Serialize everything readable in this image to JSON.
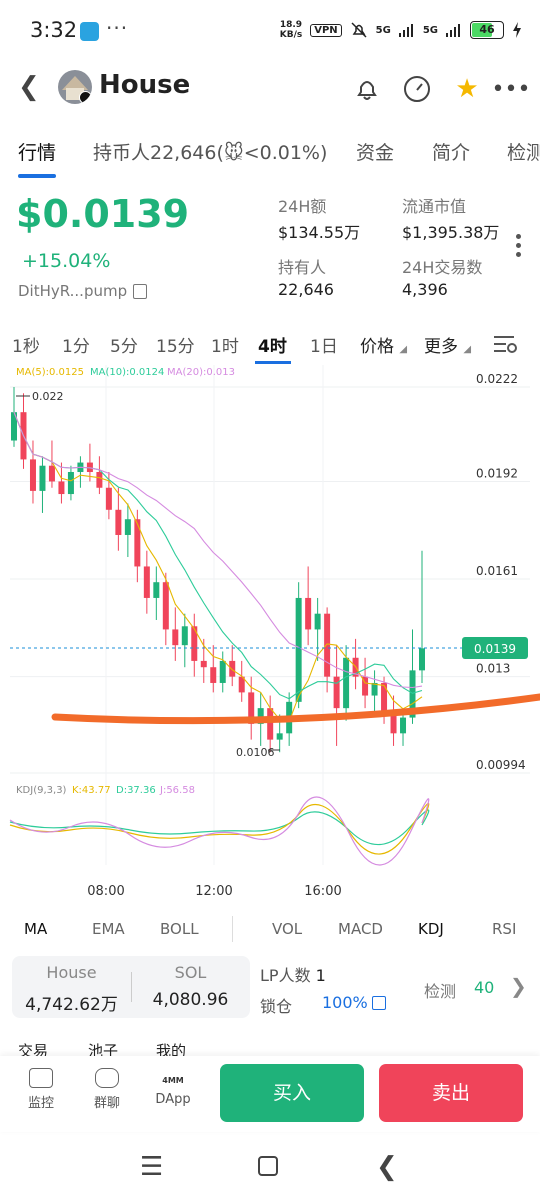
{
  "status": {
    "time": "3:32",
    "dots": "···",
    "net_speed_top": "18.9",
    "net_speed_bottom": "KB/s",
    "vpn": "VPN",
    "sig1": "5G",
    "sig2": "5G",
    "battery": "46"
  },
  "header": {
    "title": "House"
  },
  "tabs": [
    "行情",
    "持币人22,646(🐭<0.01%)",
    "资金",
    "简介",
    "检测"
  ],
  "price": {
    "value": "$0.0139",
    "change": "+15.04%",
    "address": "DitHyR...pump"
  },
  "stats": [
    {
      "label": "24H额",
      "value": "$134.55万"
    },
    {
      "label": "流通市值",
      "value": "$1,395.38万"
    },
    {
      "label": "持有人",
      "value": "22,646"
    },
    {
      "label": "24H交易数",
      "value": "4,396"
    }
  ],
  "timeframes": [
    "1秒",
    "1分",
    "5分",
    "15分",
    "1时",
    "4时",
    "1日"
  ],
  "tf_dropdowns": [
    "价格",
    "更多"
  ],
  "chart": {
    "ma_labels": {
      "ma5": "MA(5):0.0125",
      "ma10": "MA(10):0.0124",
      "ma20": "MA(20):0.013"
    },
    "y_ticks": [
      "0.0222",
      "0.0192",
      "0.0161",
      "0.013",
      "0.00994"
    ],
    "current_price": "0.0139",
    "high_label": "0.022",
    "low_label": "0.0106",
    "kdj_labels": {
      "name": "KDJ(9,3,3)",
      "k": "K:43.77",
      "d": "D:37.36",
      "j": "J:56.58"
    },
    "x_ticks": [
      "08:00",
      "12:00",
      "16:00"
    ],
    "colors": {
      "up": "#1fb27a",
      "down": "#f0445a",
      "ma5": "#e6b800",
      "ma10": "#2ecc9a",
      "ma20": "#d58be0",
      "annotation": "#f26b2a"
    }
  },
  "chart_data": {
    "type": "candlestick",
    "ylim": [
      0.00994,
      0.0222
    ],
    "y_ticks": [
      0.0222,
      0.0192,
      0.0161,
      0.013,
      0.00994
    ],
    "x_ticks": [
      "08:00",
      "12:00",
      "16:00"
    ],
    "ohlc": [
      [
        0.0205,
        0.0222,
        0.0203,
        0.0214
      ],
      [
        0.0214,
        0.022,
        0.0196,
        0.0199
      ],
      [
        0.0199,
        0.0205,
        0.0185,
        0.0189
      ],
      [
        0.0189,
        0.02,
        0.0182,
        0.0197
      ],
      [
        0.0197,
        0.0205,
        0.019,
        0.0192
      ],
      [
        0.0192,
        0.0198,
        0.0185,
        0.0188
      ],
      [
        0.0188,
        0.0197,
        0.0186,
        0.0195
      ],
      [
        0.0195,
        0.02,
        0.019,
        0.0198
      ],
      [
        0.0198,
        0.0204,
        0.0192,
        0.0195
      ],
      [
        0.0195,
        0.02,
        0.0188,
        0.019
      ],
      [
        0.019,
        0.0195,
        0.018,
        0.0183
      ],
      [
        0.0183,
        0.019,
        0.017,
        0.0175
      ],
      [
        0.0175,
        0.0185,
        0.0168,
        0.018
      ],
      [
        0.018,
        0.0183,
        0.016,
        0.0165
      ],
      [
        0.0165,
        0.017,
        0.015,
        0.0155
      ],
      [
        0.0155,
        0.0165,
        0.0148,
        0.016
      ],
      [
        0.016,
        0.0163,
        0.014,
        0.0145
      ],
      [
        0.0145,
        0.0152,
        0.0135,
        0.014
      ],
      [
        0.014,
        0.015,
        0.0133,
        0.0146
      ],
      [
        0.0146,
        0.015,
        0.013,
        0.0135
      ],
      [
        0.0135,
        0.0142,
        0.0128,
        0.0133
      ],
      [
        0.0133,
        0.014,
        0.0125,
        0.0128
      ],
      [
        0.0128,
        0.0138,
        0.0125,
        0.0135
      ],
      [
        0.0135,
        0.014,
        0.0127,
        0.013
      ],
      [
        0.013,
        0.0135,
        0.0122,
        0.0125
      ],
      [
        0.0125,
        0.013,
        0.011,
        0.0115
      ],
      [
        0.0115,
        0.0125,
        0.0108,
        0.012
      ],
      [
        0.012,
        0.0124,
        0.0106,
        0.011
      ],
      [
        0.011,
        0.0118,
        0.0106,
        0.0112
      ],
      [
        0.0112,
        0.0125,
        0.0108,
        0.0122
      ],
      [
        0.0122,
        0.016,
        0.012,
        0.0155
      ],
      [
        0.0155,
        0.0165,
        0.014,
        0.0145
      ],
      [
        0.0145,
        0.0155,
        0.0135,
        0.015
      ],
      [
        0.015,
        0.0152,
        0.0125,
        0.013
      ],
      [
        0.013,
        0.014,
        0.0108,
        0.012
      ],
      [
        0.012,
        0.014,
        0.0116,
        0.0136
      ],
      [
        0.0136,
        0.0142,
        0.0126,
        0.013
      ],
      [
        0.013,
        0.0136,
        0.012,
        0.0124
      ],
      [
        0.0124,
        0.0132,
        0.0118,
        0.0128
      ],
      [
        0.0128,
        0.013,
        0.0115,
        0.0118
      ],
      [
        0.0118,
        0.0124,
        0.0108,
        0.0112
      ],
      [
        0.0112,
        0.012,
        0.0108,
        0.0117
      ],
      [
        0.0117,
        0.0145,
        0.0115,
        0.0132
      ],
      [
        0.0132,
        0.017,
        0.0128,
        0.0139
      ]
    ],
    "kdj": {
      "k": 43.77,
      "d": 37.36,
      "j": 56.58
    }
  },
  "indicators": [
    "MA",
    "EMA",
    "BOLL",
    "VOL",
    "MACD",
    "KDJ",
    "RSI"
  ],
  "pair": {
    "a_name": "House",
    "a_val": "4,742.62万",
    "b_name": "SOL",
    "b_val": "4,080.96"
  },
  "lp": {
    "label": "LP人数",
    "value": "1",
    "lock_label": "锁仓",
    "lock_value": "100%"
  },
  "detect": {
    "label": "检测",
    "value": "40"
  },
  "subtabs": [
    "交易",
    "池子",
    "我的"
  ],
  "bottom": {
    "items": [
      "监控",
      "群聊",
      "DApp"
    ],
    "buy": "买入",
    "sell": "卖出",
    "dapp_badge": "4MM"
  }
}
